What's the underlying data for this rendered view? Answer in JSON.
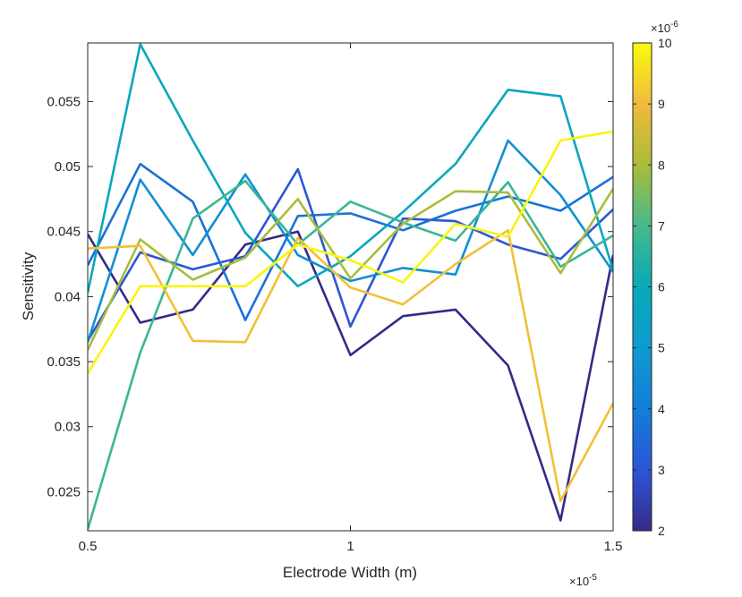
{
  "chart_data": {
    "type": "line",
    "xlabel": "Electrode Width (m)",
    "ylabel": "Sensitivity",
    "x": [
      0.5,
      0.6,
      0.7,
      0.8,
      0.9,
      1.0,
      1.1,
      1.2,
      1.3,
      1.4,
      1.5
    ],
    "x_multiplier": "×10^{-5}",
    "xlim": [
      0.5,
      1.5
    ],
    "ylim": [
      0.022,
      0.0595
    ],
    "xticks": [
      0.5,
      1,
      1.5
    ],
    "xtick_labels": [
      "0.5",
      "1",
      "1.5"
    ],
    "yticks": [
      0.025,
      0.03,
      0.035,
      0.04,
      0.045,
      0.05,
      0.055
    ],
    "ytick_labels": [
      "0.025",
      "0.03",
      "0.035",
      "0.04",
      "0.045",
      "0.05",
      "0.055"
    ],
    "grid": false,
    "colorbar": {
      "range": [
        2,
        10
      ],
      "ticks": [
        2,
        3,
        4,
        5,
        6,
        7,
        8,
        9,
        10
      ],
      "tick_labels": [
        "2",
        "3",
        "4",
        "5",
        "6",
        "7",
        "8",
        "9",
        "10"
      ],
      "multiplier": "×10^{-6}",
      "colormap": "parula"
    },
    "series": [
      {
        "color_value": 2.0,
        "values": [
          0.0448,
          0.038,
          0.039,
          0.044,
          0.045,
          0.0355,
          0.0385,
          0.039,
          0.0347,
          0.0228,
          0.0432
        ]
      },
      {
        "color_value": 3.0,
        "values": [
          0.0366,
          0.0434,
          0.0421,
          0.0431,
          0.0498,
          0.0377,
          0.046,
          0.0458,
          0.044,
          0.0429,
          0.0467
        ]
      },
      {
        "color_value": 3.7,
        "values": [
          0.0424,
          0.0502,
          0.0473,
          0.0382,
          0.0462,
          0.0464,
          0.0451,
          0.0466,
          0.0477,
          0.0466,
          0.0492
        ]
      },
      {
        "color_value": 4.6,
        "values": [
          0.0365,
          0.049,
          0.0432,
          0.0494,
          0.0432,
          0.0412,
          0.0422,
          0.0417,
          0.052,
          0.0478,
          0.0419
        ]
      },
      {
        "color_value": 5.8,
        "values": [
          0.0403,
          0.0594,
          0.052,
          0.0449,
          0.0408,
          0.0431,
          0.0465,
          0.0502,
          0.0559,
          0.0554,
          0.042
        ]
      },
      {
        "color_value": 6.8,
        "values": [
          0.0221,
          0.0357,
          0.046,
          0.0489,
          0.044,
          0.0473,
          0.0457,
          0.0443,
          0.0488,
          0.0423,
          0.0447
        ]
      },
      {
        "color_value": 8.0,
        "values": [
          0.0359,
          0.0444,
          0.0413,
          0.043,
          0.0475,
          0.0414,
          0.0456,
          0.0481,
          0.048,
          0.0418,
          0.0483
        ]
      },
      {
        "color_value": 9.1,
        "values": [
          0.0437,
          0.0439,
          0.0366,
          0.0365,
          0.0445,
          0.0407,
          0.0394,
          0.0425,
          0.0451,
          0.0243,
          0.0318
        ]
      },
      {
        "color_value": 9.9,
        "values": [
          0.0341,
          0.0408,
          0.0408,
          0.0408,
          0.044,
          0.0428,
          0.0411,
          0.0456,
          0.0446,
          0.052,
          0.0527
        ]
      }
    ]
  }
}
